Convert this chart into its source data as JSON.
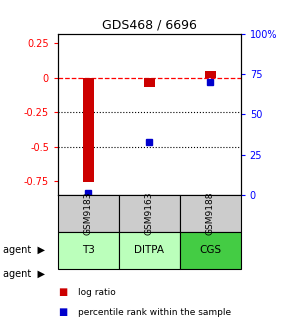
{
  "title": "GDS468 / 6696",
  "samples": [
    "GSM9183",
    "GSM9163",
    "GSM9188"
  ],
  "agents": [
    "T3",
    "DITPA",
    "CGS"
  ],
  "log_ratios": [
    -0.76,
    -0.07,
    0.05
  ],
  "percentile_ranks": [
    1.0,
    33.0,
    70.0
  ],
  "ylim_left": [
    -0.85,
    0.32
  ],
  "ylim_right": [
    0.0,
    100.0
  ],
  "bar_color": "#cc0000",
  "dot_color": "#0000cc",
  "dotted_lines": [
    -0.25,
    -0.5
  ],
  "right_ticks": [
    0,
    25,
    50,
    75,
    100
  ],
  "right_tick_labels": [
    "0",
    "25",
    "50",
    "75",
    "100%"
  ],
  "left_ticks": [
    -0.75,
    -0.5,
    -0.25,
    0.0,
    0.25
  ],
  "left_tick_labels": [
    "-0.75",
    "-0.5",
    "-0.25",
    "0",
    "0.25"
  ],
  "sample_bg": "#cccccc",
  "agent_colors": [
    "#bbffbb",
    "#bbffbb",
    "#44cc44"
  ],
  "bar_width": 0.18,
  "x_positions": [
    0.5,
    1.5,
    2.5
  ],
  "x_lim": [
    0,
    3
  ]
}
